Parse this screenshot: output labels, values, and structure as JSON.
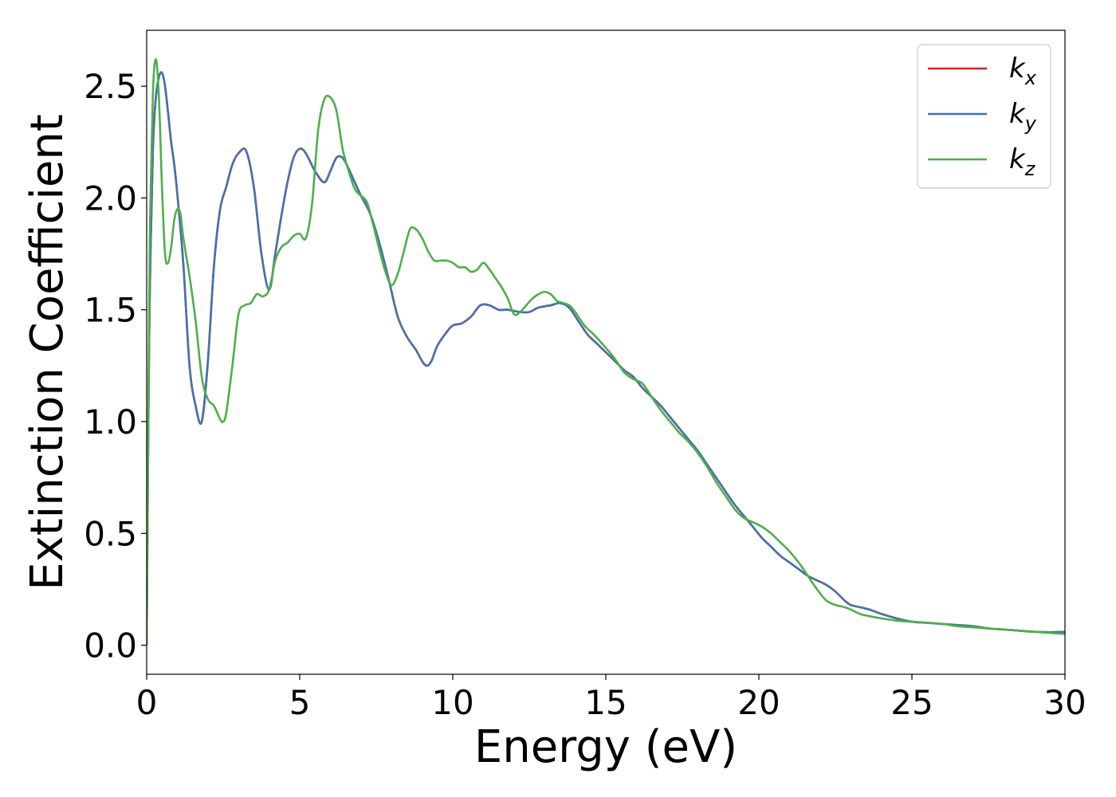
{
  "chart_data": {
    "type": "line",
    "xlabel": "Energy (eV)",
    "ylabel": "Extinction Coefficient",
    "xlim": [
      0,
      30
    ],
    "ylim": [
      -0.13,
      2.75
    ],
    "xticks": [
      0,
      5,
      10,
      15,
      20,
      25,
      30
    ],
    "xtick_labels": [
      "0",
      "5",
      "10",
      "15",
      "20",
      "25",
      "30"
    ],
    "yticks": [
      0.0,
      0.5,
      1.0,
      1.5,
      2.0,
      2.5
    ],
    "ytick_labels": [
      "0.0",
      "0.5",
      "1.0",
      "1.5",
      "2.0",
      "2.5"
    ],
    "grid": false,
    "legend_position": "top-right",
    "series": [
      {
        "name": "k",
        "subscript": "x",
        "color": "#e41a1c",
        "x": [
          0,
          0.05,
          0.1,
          0.2,
          0.3,
          0.4,
          0.5,
          0.6,
          0.7,
          0.8,
          0.9,
          1.0,
          1.2,
          1.4,
          1.6,
          1.8,
          2.0,
          2.2,
          2.4,
          2.6,
          2.8,
          3.0,
          3.25,
          3.5,
          3.75,
          4.0,
          4.2,
          4.4,
          4.6,
          4.8,
          5.0,
          5.2,
          5.5,
          5.8,
          6.0,
          6.2,
          6.4,
          6.6,
          6.8,
          7.0,
          7.3,
          7.6,
          7.9,
          8.2,
          8.5,
          8.8,
          9.0,
          9.15,
          9.3,
          9.5,
          9.8,
          10.0,
          10.3,
          10.6,
          10.9,
          11.2,
          11.5,
          11.8,
          12.2,
          12.5,
          12.8,
          13.2,
          13.5,
          13.8,
          14.1,
          14.4,
          14.7,
          15.0,
          15.3,
          15.6,
          15.9,
          16.2,
          16.5,
          16.8,
          17.1,
          17.4,
          17.7,
          18.0,
          18.3,
          18.6,
          18.9,
          19.2,
          19.5,
          19.8,
          20.1,
          20.4,
          20.7,
          21.0,
          21.3,
          21.6,
          21.9,
          22.2,
          22.5,
          22.8,
          23.0,
          23.3,
          23.6,
          24.0,
          24.5,
          25.0,
          25.5,
          26.0,
          26.5,
          27.0,
          27.5,
          28.0,
          28.5,
          29.0,
          29.5,
          30.0
        ],
        "values": [
          0.0,
          0.9,
          1.55,
          2.2,
          2.45,
          2.54,
          2.56,
          2.5,
          2.38,
          2.25,
          2.15,
          2.02,
          1.7,
          1.25,
          1.07,
          1.0,
          1.27,
          1.7,
          1.95,
          2.05,
          2.15,
          2.2,
          2.21,
          2.05,
          1.75,
          1.59,
          1.75,
          1.92,
          2.07,
          2.18,
          2.22,
          2.2,
          2.12,
          2.07,
          2.12,
          2.18,
          2.18,
          2.13,
          2.07,
          2.01,
          1.93,
          1.8,
          1.64,
          1.47,
          1.38,
          1.32,
          1.27,
          1.25,
          1.27,
          1.34,
          1.4,
          1.43,
          1.44,
          1.47,
          1.52,
          1.52,
          1.5,
          1.5,
          1.49,
          1.49,
          1.51,
          1.52,
          1.53,
          1.51,
          1.45,
          1.39,
          1.35,
          1.31,
          1.27,
          1.23,
          1.2,
          1.15,
          1.11,
          1.07,
          1.02,
          0.97,
          0.92,
          0.87,
          0.81,
          0.75,
          0.69,
          0.63,
          0.58,
          0.53,
          0.48,
          0.44,
          0.4,
          0.37,
          0.34,
          0.31,
          0.29,
          0.27,
          0.24,
          0.2,
          0.18,
          0.17,
          0.16,
          0.14,
          0.12,
          0.105,
          0.1,
          0.095,
          0.09,
          0.085,
          0.075,
          0.07,
          0.065,
          0.06,
          0.058,
          0.06
        ]
      },
      {
        "name": "k",
        "subscript": "y",
        "color": "#4472b0",
        "x": [
          0,
          0.05,
          0.1,
          0.2,
          0.3,
          0.4,
          0.5,
          0.6,
          0.7,
          0.8,
          0.9,
          1.0,
          1.2,
          1.4,
          1.6,
          1.8,
          2.0,
          2.2,
          2.4,
          2.6,
          2.8,
          3.0,
          3.25,
          3.5,
          3.75,
          4.0,
          4.2,
          4.4,
          4.6,
          4.8,
          5.0,
          5.2,
          5.5,
          5.8,
          6.0,
          6.2,
          6.4,
          6.6,
          6.8,
          7.0,
          7.3,
          7.6,
          7.9,
          8.2,
          8.5,
          8.8,
          9.0,
          9.15,
          9.3,
          9.5,
          9.8,
          10.0,
          10.3,
          10.6,
          10.9,
          11.2,
          11.5,
          11.8,
          12.2,
          12.5,
          12.8,
          13.2,
          13.5,
          13.8,
          14.1,
          14.4,
          14.7,
          15.0,
          15.3,
          15.6,
          15.9,
          16.2,
          16.5,
          16.8,
          17.1,
          17.4,
          17.7,
          18.0,
          18.3,
          18.6,
          18.9,
          19.2,
          19.5,
          19.8,
          20.1,
          20.4,
          20.7,
          21.0,
          21.3,
          21.6,
          21.9,
          22.2,
          22.5,
          22.8,
          23.0,
          23.3,
          23.6,
          24.0,
          24.5,
          25.0,
          25.5,
          26.0,
          26.5,
          27.0,
          27.5,
          28.0,
          28.5,
          29.0,
          29.5,
          30.0
        ],
        "values": [
          0.0,
          0.9,
          1.55,
          2.2,
          2.45,
          2.54,
          2.56,
          2.5,
          2.38,
          2.25,
          2.15,
          2.02,
          1.7,
          1.25,
          1.07,
          1.0,
          1.27,
          1.7,
          1.95,
          2.05,
          2.15,
          2.2,
          2.21,
          2.05,
          1.75,
          1.59,
          1.75,
          1.92,
          2.07,
          2.18,
          2.22,
          2.2,
          2.12,
          2.07,
          2.12,
          2.18,
          2.18,
          2.13,
          2.07,
          2.01,
          1.93,
          1.8,
          1.64,
          1.47,
          1.38,
          1.32,
          1.27,
          1.25,
          1.27,
          1.34,
          1.4,
          1.43,
          1.44,
          1.47,
          1.52,
          1.52,
          1.5,
          1.5,
          1.49,
          1.49,
          1.51,
          1.52,
          1.53,
          1.51,
          1.45,
          1.39,
          1.35,
          1.31,
          1.27,
          1.23,
          1.2,
          1.15,
          1.11,
          1.07,
          1.02,
          0.97,
          0.92,
          0.87,
          0.81,
          0.75,
          0.69,
          0.63,
          0.58,
          0.53,
          0.48,
          0.44,
          0.4,
          0.37,
          0.34,
          0.31,
          0.29,
          0.27,
          0.24,
          0.2,
          0.18,
          0.17,
          0.16,
          0.14,
          0.12,
          0.105,
          0.1,
          0.095,
          0.09,
          0.085,
          0.075,
          0.07,
          0.065,
          0.06,
          0.058,
          0.06
        ]
      },
      {
        "name": "k",
        "subscript": "z",
        "color": "#4daf4a",
        "x": [
          0,
          0.05,
          0.1,
          0.2,
          0.3,
          0.4,
          0.5,
          0.6,
          0.7,
          0.8,
          0.9,
          1.0,
          1.1,
          1.2,
          1.4,
          1.6,
          1.8,
          2.0,
          2.2,
          2.4,
          2.5,
          2.6,
          2.8,
          3.0,
          3.2,
          3.4,
          3.6,
          3.8,
          4.0,
          4.2,
          4.4,
          4.6,
          4.8,
          5.0,
          5.2,
          5.4,
          5.6,
          5.8,
          6.0,
          6.2,
          6.4,
          6.6,
          6.8,
          7.0,
          7.2,
          7.4,
          7.6,
          7.8,
          8.0,
          8.2,
          8.4,
          8.6,
          8.8,
          9.0,
          9.2,
          9.4,
          9.6,
          9.8,
          10.0,
          10.2,
          10.4,
          10.6,
          10.8,
          11.0,
          11.2,
          11.4,
          11.6,
          11.8,
          12.0,
          12.2,
          12.4,
          12.6,
          12.8,
          13.0,
          13.2,
          13.4,
          13.6,
          13.8,
          14.0,
          14.3,
          14.6,
          15.0,
          15.3,
          15.6,
          15.9,
          16.2,
          16.5,
          16.8,
          17.1,
          17.4,
          17.7,
          18.0,
          18.3,
          18.6,
          18.9,
          19.2,
          19.5,
          19.8,
          20.1,
          20.4,
          20.7,
          21.0,
          21.3,
          21.6,
          21.9,
          22.2,
          22.5,
          22.8,
          23.0,
          23.3,
          23.6,
          24.0,
          24.5,
          25.0,
          25.5,
          26.0,
          26.5,
          27.0,
          27.5,
          28.0,
          28.5,
          29.0,
          29.5,
          30.0
        ],
        "values": [
          0.0,
          1.0,
          1.8,
          2.45,
          2.62,
          2.45,
          2.05,
          1.75,
          1.71,
          1.78,
          1.9,
          1.95,
          1.93,
          1.82,
          1.65,
          1.45,
          1.2,
          1.1,
          1.07,
          1.01,
          1.0,
          1.04,
          1.25,
          1.48,
          1.52,
          1.53,
          1.57,
          1.56,
          1.59,
          1.72,
          1.78,
          1.8,
          1.83,
          1.84,
          1.82,
          1.97,
          2.3,
          2.44,
          2.45,
          2.39,
          2.22,
          2.12,
          2.04,
          2.01,
          1.98,
          1.88,
          1.77,
          1.67,
          1.61,
          1.66,
          1.76,
          1.86,
          1.86,
          1.82,
          1.76,
          1.72,
          1.72,
          1.72,
          1.71,
          1.69,
          1.69,
          1.67,
          1.68,
          1.71,
          1.68,
          1.64,
          1.6,
          1.55,
          1.48,
          1.49,
          1.52,
          1.55,
          1.57,
          1.58,
          1.57,
          1.54,
          1.53,
          1.52,
          1.49,
          1.43,
          1.39,
          1.33,
          1.28,
          1.22,
          1.19,
          1.17,
          1.11,
          1.05,
          1.0,
          0.95,
          0.91,
          0.86,
          0.8,
          0.73,
          0.67,
          0.61,
          0.57,
          0.55,
          0.53,
          0.5,
          0.46,
          0.42,
          0.37,
          0.31,
          0.25,
          0.2,
          0.18,
          0.17,
          0.16,
          0.14,
          0.13,
          0.12,
          0.11,
          0.105,
          0.1,
          0.095,
          0.085,
          0.08,
          0.075,
          0.07,
          0.065,
          0.06,
          0.055,
          0.05
        ]
      }
    ]
  }
}
